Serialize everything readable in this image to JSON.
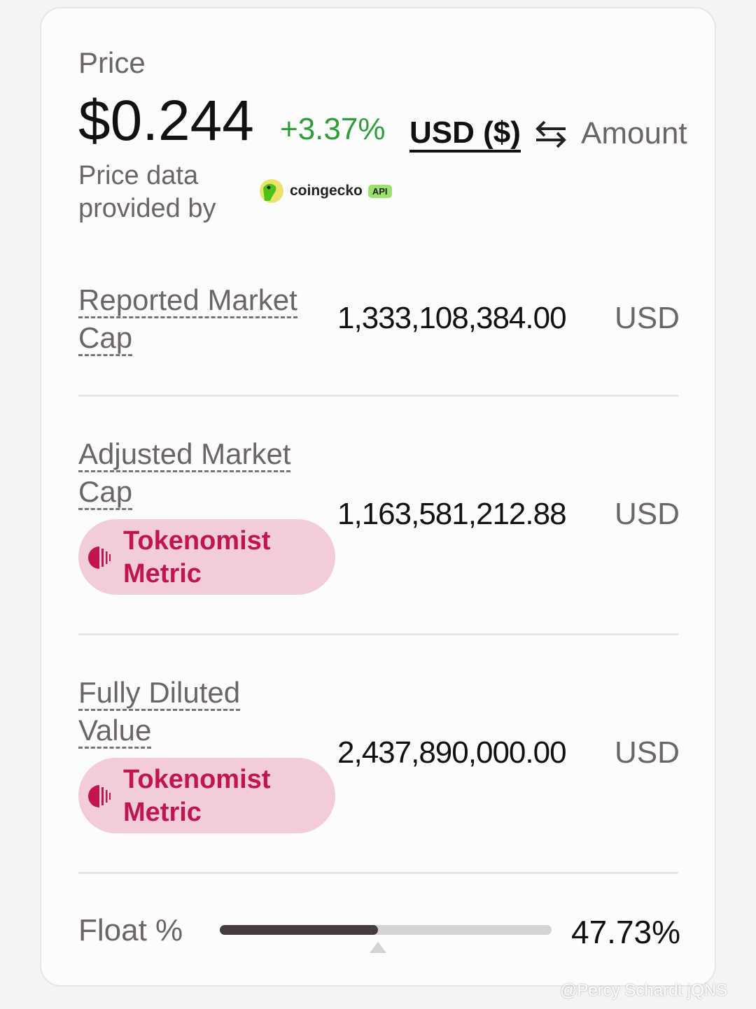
{
  "price": {
    "label": "Price",
    "value": "$0.244",
    "change": "+3.37%",
    "currency": "USD ($)",
    "swap_icon": "swap-arrows-icon",
    "amount_label": "Amount",
    "provider_text": "Price data provided by",
    "provider_logo": "coingecko",
    "provider_badge": "API"
  },
  "colors": {
    "positive": "#2e9e3a",
    "badge_bg": "#f2ccd8",
    "badge_text": "#c0154f"
  },
  "metrics": [
    {
      "label": "Reported Market Cap",
      "value": "1,333,108,384.00",
      "unit": "USD"
    },
    {
      "label": "Adjusted Market Cap",
      "value": "1,163,581,212.88",
      "unit": "USD",
      "badge": "Tokenomist Metric"
    },
    {
      "label": "Fully Diluted Value",
      "value": "2,437,890,000.00",
      "unit": "USD",
      "badge": "Tokenomist Metric"
    }
  ],
  "float": {
    "label": "Float %",
    "value": "47.73%",
    "percent": 47.73
  },
  "watermark": "@Percy Schardt jQNS"
}
